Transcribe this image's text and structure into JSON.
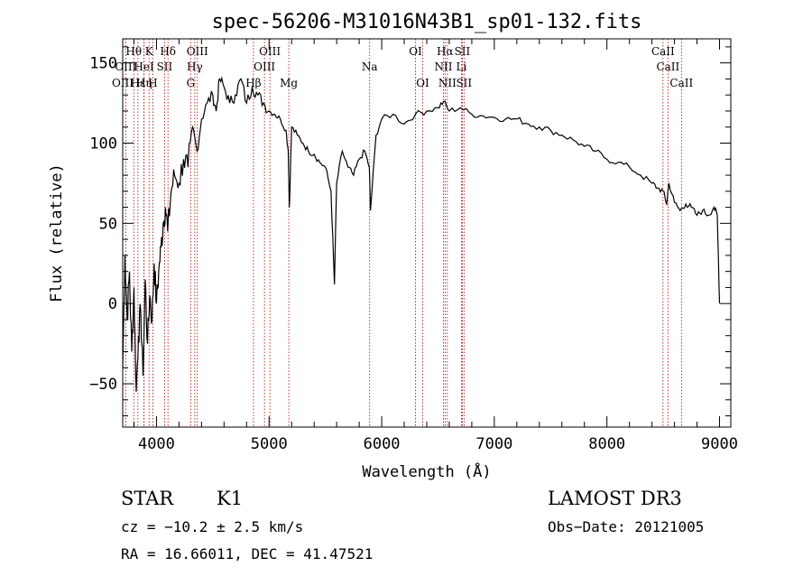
{
  "chart_data": {
    "type": "line",
    "title": "spec-56206-M31016N43B1_sp01-132.fits",
    "xlabel": "Wavelength (Å)",
    "ylabel": "Flux (relative)",
    "xlim": [
      3700,
      9100
    ],
    "ylim": [
      -77,
      165
    ],
    "xticks": [
      4000,
      5000,
      6000,
      7000,
      8000,
      9000
    ],
    "yticks": [
      -50,
      0,
      50,
      100,
      150
    ],
    "spectrum": {
      "x": [
        3700,
        3720,
        3740,
        3760,
        3780,
        3800,
        3820,
        3840,
        3860,
        3880,
        3900,
        3920,
        3940,
        3960,
        3980,
        4000,
        4020,
        4040,
        4060,
        4080,
        4100,
        4130,
        4160,
        4200,
        4240,
        4280,
        4320,
        4360,
        4400,
        4450,
        4500,
        4530,
        4560,
        4600,
        4650,
        4700,
        4750,
        4800,
        4850,
        4900,
        4950,
        5000,
        5050,
        5100,
        5150,
        5170,
        5180,
        5200,
        5250,
        5300,
        5350,
        5400,
        5450,
        5500,
        5550,
        5580,
        5600,
        5650,
        5700,
        5750,
        5800,
        5850,
        5890,
        5900,
        5950,
        6000,
        6100,
        6200,
        6300,
        6400,
        6500,
        6550,
        6600,
        6700,
        6800,
        6900,
        7000,
        7100,
        7200,
        7300,
        7400,
        7500,
        7600,
        7700,
        7800,
        7900,
        8000,
        8100,
        8200,
        8300,
        8400,
        8450,
        8500,
        8530,
        8550,
        8600,
        8650,
        8700,
        8750,
        8800,
        8850,
        8900,
        8950,
        8980,
        9000
      ],
      "y": [
        -40,
        30,
        -10,
        20,
        -30,
        10,
        -55,
        -20,
        -5,
        -45,
        15,
        -25,
        5,
        -10,
        25,
        0,
        20,
        35,
        50,
        60,
        45,
        70,
        80,
        75,
        90,
        85,
        110,
        95,
        115,
        125,
        130,
        120,
        140,
        135,
        125,
        130,
        140,
        125,
        135,
        130,
        125,
        120,
        118,
        115,
        108,
        95,
        60,
        110,
        105,
        100,
        95,
        93,
        88,
        85,
        70,
        12,
        75,
        95,
        85,
        80,
        90,
        95,
        85,
        58,
        105,
        115,
        118,
        112,
        118,
        120,
        122,
        126,
        120,
        122,
        118,
        117,
        116,
        115,
        115,
        112,
        110,
        108,
        105,
        102,
        98,
        95,
        90,
        88,
        85,
        80,
        75,
        72,
        70,
        62,
        75,
        63,
        58,
        62,
        60,
        55,
        58,
        55,
        60,
        55,
        0
      ]
    },
    "lines": [
      {
        "name": "Hθ",
        "wave": 3798,
        "row": 1
      },
      {
        "name": "K",
        "wave": 3934,
        "row": 1
      },
      {
        "name": "Hδ",
        "wave": 4102,
        "row": 1
      },
      {
        "name": "OIII",
        "wave": 4363,
        "row": 1
      },
      {
        "name": "OIII",
        "wave": 5007,
        "row": 1
      },
      {
        "name": "OI",
        "wave": 6300,
        "row": 1
      },
      {
        "name": "Hα",
        "wave": 6563,
        "row": 1
      },
      {
        "name": "SII",
        "wave": 6716,
        "row": 1
      },
      {
        "name": "CaII",
        "wave": 8498,
        "row": 1
      },
      {
        "name": "OIII",
        "wave": 3727,
        "row": 2
      },
      {
        "name": "HeI",
        "wave": 3889,
        "row": 2
      },
      {
        "name": "SII",
        "wave": 4072,
        "row": 2
      },
      {
        "name": "Hγ",
        "wave": 4340,
        "row": 2
      },
      {
        "name": "OIII",
        "wave": 4959,
        "row": 2
      },
      {
        "name": "Na",
        "wave": 5893,
        "row": 2
      },
      {
        "name": "NII",
        "wave": 6548,
        "row": 2
      },
      {
        "name": "Li",
        "wave": 6708,
        "row": 2
      },
      {
        "name": "CaII",
        "wave": 8542,
        "row": 2
      },
      {
        "name": "OIII",
        "wave": 3700,
        "row": 3
      },
      {
        "name": "Hε",
        "wave": 3835,
        "row": 3
      },
      {
        "name": "Hη",
        "wave": 3890,
        "row": 3
      },
      {
        "name": "H",
        "wave": 3968,
        "row": 3
      },
      {
        "name": "G",
        "wave": 4304,
        "row": 3
      },
      {
        "name": "Hβ",
        "wave": 4861,
        "row": 3
      },
      {
        "name": "Mg",
        "wave": 5175,
        "row": 3
      },
      {
        "name": "OI",
        "wave": 6364,
        "row": 3
      },
      {
        "name": "NII",
        "wave": 6583,
        "row": 3
      },
      {
        "name": "SII",
        "wave": 6731,
        "row": 3
      },
      {
        "name": "CaII",
        "wave": 8662,
        "row": 3
      }
    ],
    "line_color": "#b00000"
  },
  "info": {
    "object_class": "STAR",
    "subclass": "K1",
    "survey": "LAMOST DR3",
    "cz": "cz = −10.2 ± 2.5 km/s",
    "obs_date": "Obs−Date: 20121005",
    "coords": "RA =  16.66011, DEC =  41.47521"
  }
}
